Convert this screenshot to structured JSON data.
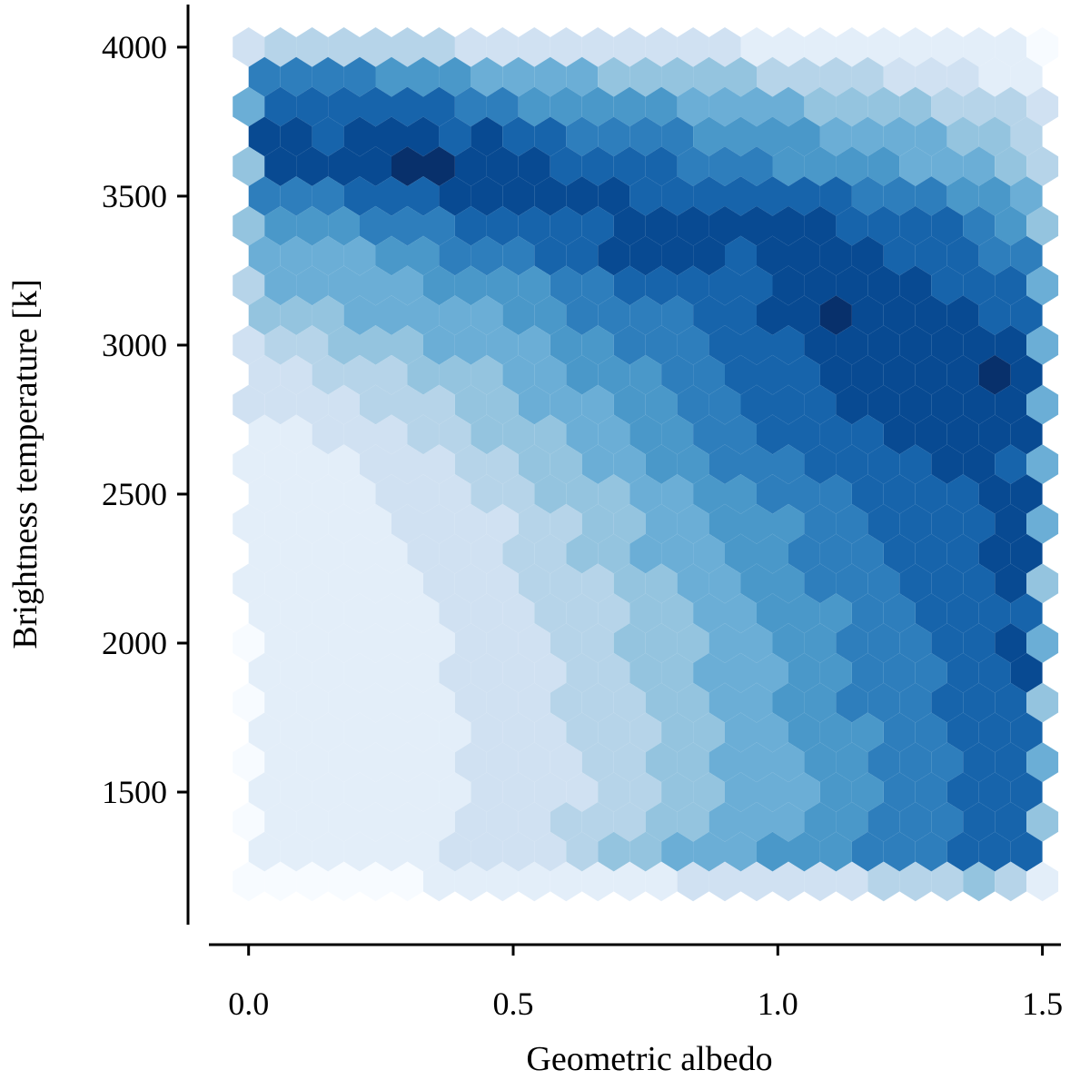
{
  "chart_data": {
    "type": "hexbin",
    "cmap": "Blues",
    "xlabel": "Geometric albedo",
    "ylabel": "Brightness temperature [k]",
    "xlim": [
      -0.075,
      1.535
    ],
    "ylim": [
      1055,
      4143
    ],
    "xticks": [
      {
        "value": 0,
        "label": "0.0"
      },
      0.5,
      {
        "value": 1,
        "label": "1.0"
      },
      1.5
    ],
    "yticks": [
      1500,
      2000,
      2500,
      3000,
      3500,
      4000
    ],
    "x_even": [
      0,
      0.06,
      0.12,
      0.18,
      0.24,
      0.3,
      0.36,
      0.42,
      0.48,
      0.54,
      0.6,
      0.66,
      0.72,
      0.78,
      0.84,
      0.9,
      0.96,
      1.02,
      1.08,
      1.14,
      1.2,
      1.26,
      1.32,
      1.38,
      1.44,
      1.5
    ],
    "x_odd": [
      0.03,
      0.09,
      0.15,
      0.21,
      0.27,
      0.33,
      0.39,
      0.45,
      0.51,
      0.57,
      0.63,
      0.69,
      0.75,
      0.81,
      0.87,
      0.93,
      0.99,
      1.05,
      1.11,
      1.17,
      1.23,
      1.29,
      1.35,
      1.41,
      1.47
    ],
    "y": [
      4000,
      3900,
      3800,
      3700,
      3600,
      3500,
      3400,
      3300,
      3200,
      3100,
      3000,
      2900,
      2800,
      2700,
      2600,
      2500,
      2400,
      2300,
      2200,
      2100,
      2000,
      1900,
      1800,
      1700,
      1600,
      1500,
      1400,
      1300,
      1200
    ],
    "counts": [
      [
        2,
        3,
        3,
        3,
        3,
        3,
        3,
        2,
        2,
        2,
        2,
        2,
        2,
        2,
        2,
        2,
        1,
        1,
        1,
        1,
        1,
        1,
        1,
        1,
        1,
        0
      ],
      [
        7,
        7,
        7,
        7,
        6,
        6,
        6,
        5,
        5,
        5,
        5,
        4,
        4,
        4,
        4,
        4,
        3,
        3,
        3,
        3,
        2,
        2,
        2,
        1,
        1
      ],
      [
        5,
        8,
        8,
        8,
        8,
        8,
        8,
        7,
        7,
        6,
        6,
        6,
        6,
        6,
        5,
        5,
        5,
        5,
        4,
        4,
        4,
        4,
        3,
        3,
        3,
        2
      ],
      [
        9,
        9,
        8,
        9,
        9,
        9,
        8,
        9,
        8,
        8,
        7,
        7,
        7,
        7,
        6,
        6,
        6,
        6,
        5,
        5,
        5,
        5,
        4,
        4,
        3
      ],
      [
        4,
        9,
        9,
        9,
        9,
        10,
        10,
        9,
        9,
        9,
        8,
        8,
        8,
        8,
        7,
        7,
        7,
        6,
        6,
        6,
        6,
        5,
        5,
        5,
        4,
        3
      ],
      [
        7,
        7,
        7,
        8,
        8,
        8,
        9,
        9,
        9,
        9,
        9,
        9,
        8,
        8,
        8,
        8,
        8,
        8,
        8,
        7,
        7,
        7,
        6,
        6,
        5
      ],
      [
        4,
        6,
        6,
        6,
        7,
        7,
        7,
        8,
        8,
        8,
        8,
        8,
        9,
        9,
        9,
        9,
        9,
        9,
        9,
        8,
        8,
        8,
        8,
        7,
        6,
        4
      ],
      [
        5,
        5,
        5,
        5,
        6,
        6,
        7,
        7,
        7,
        8,
        8,
        9,
        9,
        9,
        9,
        8,
        9,
        9,
        9,
        9,
        8,
        8,
        8,
        7,
        7
      ],
      [
        3,
        5,
        5,
        5,
        5,
        5,
        6,
        6,
        6,
        6,
        7,
        7,
        8,
        8,
        8,
        8,
        8,
        9,
        9,
        9,
        9,
        9,
        8,
        8,
        8,
        5
      ],
      [
        4,
        4,
        4,
        5,
        5,
        5,
        5,
        5,
        6,
        6,
        7,
        7,
        7,
        7,
        8,
        8,
        9,
        9,
        10,
        9,
        9,
        9,
        9,
        8,
        8
      ],
      [
        2,
        3,
        3,
        4,
        4,
        4,
        5,
        5,
        5,
        5,
        6,
        6,
        7,
        7,
        7,
        8,
        8,
        8,
        9,
        9,
        9,
        9,
        9,
        9,
        9,
        5
      ],
      [
        2,
        2,
        3,
        3,
        3,
        4,
        4,
        4,
        5,
        5,
        6,
        6,
        6,
        7,
        7,
        8,
        8,
        8,
        9,
        9,
        9,
        9,
        9,
        10,
        9
      ],
      [
        2,
        2,
        2,
        2,
        3,
        3,
        3,
        4,
        4,
        5,
        5,
        5,
        6,
        6,
        7,
        7,
        8,
        8,
        8,
        9,
        9,
        9,
        9,
        9,
        9,
        5
      ],
      [
        1,
        1,
        2,
        2,
        2,
        3,
        3,
        4,
        4,
        4,
        5,
        5,
        6,
        6,
        7,
        7,
        8,
        8,
        8,
        8,
        9,
        9,
        9,
        9,
        9
      ],
      [
        1,
        1,
        1,
        1,
        2,
        2,
        2,
        3,
        3,
        4,
        4,
        5,
        5,
        6,
        6,
        7,
        7,
        7,
        8,
        8,
        8,
        8,
        9,
        9,
        8,
        5
      ],
      [
        1,
        1,
        1,
        1,
        2,
        2,
        2,
        3,
        3,
        4,
        4,
        4,
        5,
        5,
        6,
        6,
        7,
        7,
        7,
        8,
        8,
        8,
        8,
        9,
        9
      ],
      [
        1,
        1,
        1,
        1,
        1,
        2,
        2,
        2,
        2,
        3,
        3,
        4,
        4,
        5,
        5,
        6,
        6,
        6,
        7,
        7,
        8,
        8,
        8,
        8,
        9,
        5
      ],
      [
        1,
        1,
        1,
        1,
        1,
        2,
        2,
        2,
        3,
        3,
        4,
        4,
        5,
        5,
        5,
        6,
        6,
        7,
        7,
        7,
        8,
        8,
        8,
        9,
        9
      ],
      [
        1,
        1,
        1,
        1,
        1,
        1,
        2,
        2,
        2,
        3,
        3,
        3,
        4,
        4,
        5,
        5,
        6,
        6,
        7,
        7,
        7,
        8,
        8,
        8,
        9,
        4
      ],
      [
        1,
        1,
        1,
        1,
        1,
        1,
        2,
        2,
        2,
        3,
        3,
        3,
        4,
        4,
        5,
        5,
        6,
        6,
        6,
        7,
        7,
        8,
        8,
        8,
        8
      ],
      [
        0,
        1,
        1,
        1,
        1,
        1,
        1,
        2,
        2,
        2,
        3,
        3,
        4,
        4,
        4,
        5,
        5,
        6,
        6,
        7,
        7,
        7,
        8,
        8,
        9,
        5
      ],
      [
        1,
        1,
        1,
        1,
        1,
        1,
        2,
        2,
        2,
        2,
        3,
        3,
        4,
        4,
        5,
        5,
        5,
        6,
        6,
        7,
        7,
        7,
        8,
        8,
        9
      ],
      [
        0,
        1,
        1,
        1,
        1,
        1,
        1,
        2,
        2,
        2,
        3,
        3,
        3,
        4,
        4,
        5,
        5,
        6,
        6,
        7,
        7,
        7,
        8,
        8,
        8,
        4
      ],
      [
        1,
        1,
        1,
        1,
        1,
        1,
        1,
        2,
        2,
        2,
        3,
        3,
        3,
        4,
        4,
        5,
        5,
        6,
        6,
        6,
        7,
        7,
        8,
        8,
        8
      ],
      [
        0,
        1,
        1,
        1,
        1,
        1,
        1,
        2,
        2,
        2,
        2,
        3,
        3,
        4,
        4,
        5,
        5,
        5,
        6,
        6,
        7,
        7,
        7,
        8,
        8,
        5
      ],
      [
        1,
        1,
        1,
        1,
        1,
        1,
        1,
        2,
        2,
        2,
        2,
        3,
        3,
        4,
        4,
        5,
        5,
        5,
        6,
        6,
        7,
        7,
        8,
        8,
        8
      ],
      [
        0,
        1,
        1,
        1,
        1,
        1,
        1,
        2,
        2,
        2,
        3,
        3,
        3,
        4,
        4,
        5,
        5,
        5,
        6,
        6,
        7,
        7,
        7,
        8,
        8,
        4
      ],
      [
        1,
        1,
        1,
        1,
        1,
        1,
        2,
        2,
        2,
        2,
        3,
        4,
        4,
        5,
        5,
        5,
        6,
        6,
        6,
        7,
        7,
        7,
        8,
        8,
        8
      ],
      [
        0,
        0,
        0,
        0,
        0,
        0,
        1,
        1,
        1,
        1,
        1,
        1,
        1,
        1,
        2,
        2,
        2,
        2,
        2,
        2,
        3,
        3,
        3,
        4,
        3,
        1
      ]
    ]
  }
}
